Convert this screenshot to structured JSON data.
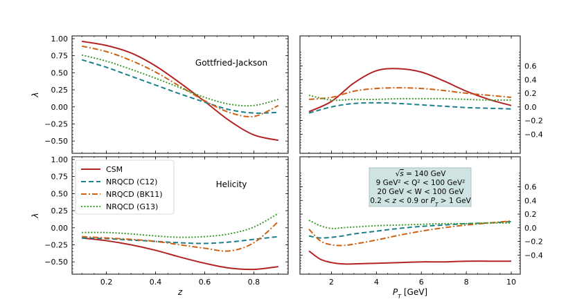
{
  "chart_data": {
    "type": "line",
    "ylabel": "λ",
    "ylim": [
      -0.68,
      1.04
    ],
    "series_styles": [
      {
        "name": "CSM",
        "color": "#b22222",
        "dash": ""
      },
      {
        "name": "NRQCD (C12)",
        "color": "#1a7f8a",
        "dash": "7,4"
      },
      {
        "name": "NRQCD (BK11)",
        "color": "#cc6010",
        "dash": "8,3,2,3"
      },
      {
        "name": "NRQCD (G13)",
        "color": "#3a9a2a",
        "dash": "2,2.4"
      }
    ],
    "panels": [
      {
        "id": "top-left",
        "frame": "Gottfried-Jackson",
        "xlabel": "",
        "xlim": [
          0.06,
          0.94
        ],
        "xticks": [
          0.2,
          0.4,
          0.6,
          0.8
        ],
        "yticks": [
          -0.5,
          -0.25,
          0.0,
          0.25,
          0.5,
          0.75,
          1.0
        ],
        "ytick_labels": [
          "−0.50",
          "−0.25",
          "0.00",
          "0.25",
          "0.50",
          "0.75",
          "1.00"
        ],
        "show_xticklabels": false,
        "show_yticklabels": "left",
        "x": [
          0.1,
          0.2,
          0.3,
          0.4,
          0.5,
          0.6,
          0.7,
          0.8,
          0.9
        ],
        "series": [
          {
            "name": "CSM",
            "values": [
              0.96,
              0.9,
              0.79,
              0.6,
              0.35,
              0.08,
              -0.2,
              -0.41,
              -0.49
            ]
          },
          {
            "name": "NRQCD (C12)",
            "values": [
              0.69,
              0.58,
              0.45,
              0.32,
              0.19,
              0.07,
              -0.04,
              -0.09,
              -0.08
            ]
          },
          {
            "name": "NRQCD (BK11)",
            "values": [
              0.89,
              0.81,
              0.68,
              0.51,
              0.3,
              0.09,
              -0.08,
              -0.14,
              0.02
            ]
          },
          {
            "name": "NRQCD (G13)",
            "values": [
              0.76,
              0.67,
              0.55,
              0.42,
              0.28,
              0.14,
              0.04,
              0.02,
              0.11
            ]
          }
        ]
      },
      {
        "id": "top-right",
        "frame": "",
        "xlabel": "",
        "xlim": [
          0.6,
          10.4
        ],
        "xticks": [
          2,
          4,
          6,
          8,
          10
        ],
        "yticks": [
          -0.4,
          -0.2,
          0.0,
          0.2,
          0.4,
          0.6
        ],
        "ytick_labels": [
          "−0.4",
          "−0.2",
          "0.0",
          "0.2",
          "0.4",
          "0.6"
        ],
        "show_xticklabels": false,
        "show_yticklabels": "right",
        "x": [
          1,
          2,
          3,
          4,
          5,
          6,
          7,
          8,
          9,
          10
        ],
        "series": [
          {
            "name": "CSM",
            "values": [
              -0.07,
              0.08,
              0.35,
              0.53,
              0.56,
              0.51,
              0.38,
              0.23,
              0.11,
              0.02
            ]
          },
          {
            "name": "NRQCD (C12)",
            "values": [
              -0.09,
              0.0,
              0.05,
              0.06,
              0.05,
              0.03,
              0.01,
              -0.01,
              -0.02,
              -0.03
            ]
          },
          {
            "name": "NRQCD (BK11)",
            "values": [
              0.11,
              0.14,
              0.23,
              0.27,
              0.28,
              0.27,
              0.24,
              0.2,
              0.17,
              0.14
            ]
          },
          {
            "name": "NRQCD (G13)",
            "values": [
              0.17,
              0.1,
              0.11,
              0.11,
              0.12,
              0.12,
              0.12,
              0.11,
              0.1,
              0.1
            ]
          }
        ]
      },
      {
        "id": "bottom-left",
        "frame": "Helicity",
        "xlabel": "z",
        "xlim": [
          0.06,
          0.94
        ],
        "xticks": [
          0.2,
          0.4,
          0.6,
          0.8
        ],
        "xtick_labels": [
          "0.2",
          "0.4",
          "0.6",
          "0.8"
        ],
        "yticks": [
          -0.5,
          -0.25,
          0.0,
          0.25,
          0.5,
          0.75,
          1.0
        ],
        "ytick_labels": [
          "−0.50",
          "−0.25",
          "0.00",
          "0.25",
          "0.50",
          "0.75",
          "1.00"
        ],
        "show_xticklabels": true,
        "show_yticklabels": "left",
        "x": [
          0.1,
          0.2,
          0.3,
          0.4,
          0.5,
          0.6,
          0.7,
          0.8,
          0.9
        ],
        "series": [
          {
            "name": "CSM",
            "values": [
              -0.15,
              -0.19,
              -0.25,
              -0.33,
              -0.43,
              -0.52,
              -0.59,
              -0.61,
              -0.57
            ]
          },
          {
            "name": "NRQCD (C12)",
            "values": [
              -0.15,
              -0.16,
              -0.18,
              -0.2,
              -0.22,
              -0.23,
              -0.21,
              -0.17,
              -0.13
            ]
          },
          {
            "name": "NRQCD (BK11)",
            "values": [
              -0.13,
              -0.15,
              -0.17,
              -0.2,
              -0.25,
              -0.3,
              -0.34,
              -0.22,
              0.09
            ]
          },
          {
            "name": "NRQCD (G13)",
            "values": [
              -0.07,
              -0.07,
              -0.09,
              -0.12,
              -0.14,
              -0.13,
              -0.09,
              0.01,
              0.21
            ]
          }
        ]
      },
      {
        "id": "bottom-right",
        "frame": "",
        "xlabel": "P_T [GeV]",
        "xlim": [
          0.6,
          10.4
        ],
        "xticks": [
          2,
          4,
          6,
          8,
          10
        ],
        "xtick_labels": [
          "2",
          "4",
          "6",
          "8",
          "10"
        ],
        "yticks": [
          -0.4,
          -0.2,
          0.0,
          0.2,
          0.4,
          0.6
        ],
        "ytick_labels": [
          "−0.4",
          "−0.2",
          "0.0",
          "0.2",
          "0.4",
          "0.6"
        ],
        "show_xticklabels": true,
        "show_yticklabels": "right",
        "x": [
          1,
          1.5,
          2,
          2.5,
          3,
          4,
          5,
          6,
          7,
          8,
          9,
          10
        ],
        "series": [
          {
            "name": "CSM",
            "values": [
              -0.34,
              -0.46,
              -0.51,
              -0.53,
              -0.53,
              -0.52,
              -0.51,
              -0.5,
              -0.5,
              -0.49,
              -0.49,
              -0.49
            ]
          },
          {
            "name": "NRQCD (C12)",
            "values": [
              -0.12,
              -0.15,
              -0.14,
              -0.12,
              -0.09,
              -0.05,
              -0.01,
              0.02,
              0.04,
              0.06,
              0.07,
              0.09
            ]
          },
          {
            "name": "NRQCD (BK11)",
            "values": [
              -0.02,
              -0.19,
              -0.25,
              -0.26,
              -0.24,
              -0.18,
              -0.11,
              -0.05,
              0.0,
              0.04,
              0.07,
              0.1
            ]
          },
          {
            "name": "NRQCD (G13)",
            "values": [
              0.11,
              0.03,
              -0.01,
              0.0,
              0.01,
              0.03,
              0.04,
              0.05,
              0.06,
              0.06,
              0.07,
              0.07
            ]
          }
        ]
      }
    ],
    "legend": {
      "location": "bottom-left panel, upper-left",
      "entries": [
        "CSM",
        "NRQCD (C12)",
        "NRQCD (BK11)",
        "NRQCD (G13)"
      ]
    },
    "annotation": {
      "panel": "bottom-right",
      "background": "#cfe3e2",
      "lines": [
        "√s = 140 GeV",
        "9 GeV² < Q² < 100 GeV²",
        "20 GeV < W < 100 GeV",
        "0.2 < z < 0.9 or P_T > 1 GeV"
      ]
    }
  }
}
